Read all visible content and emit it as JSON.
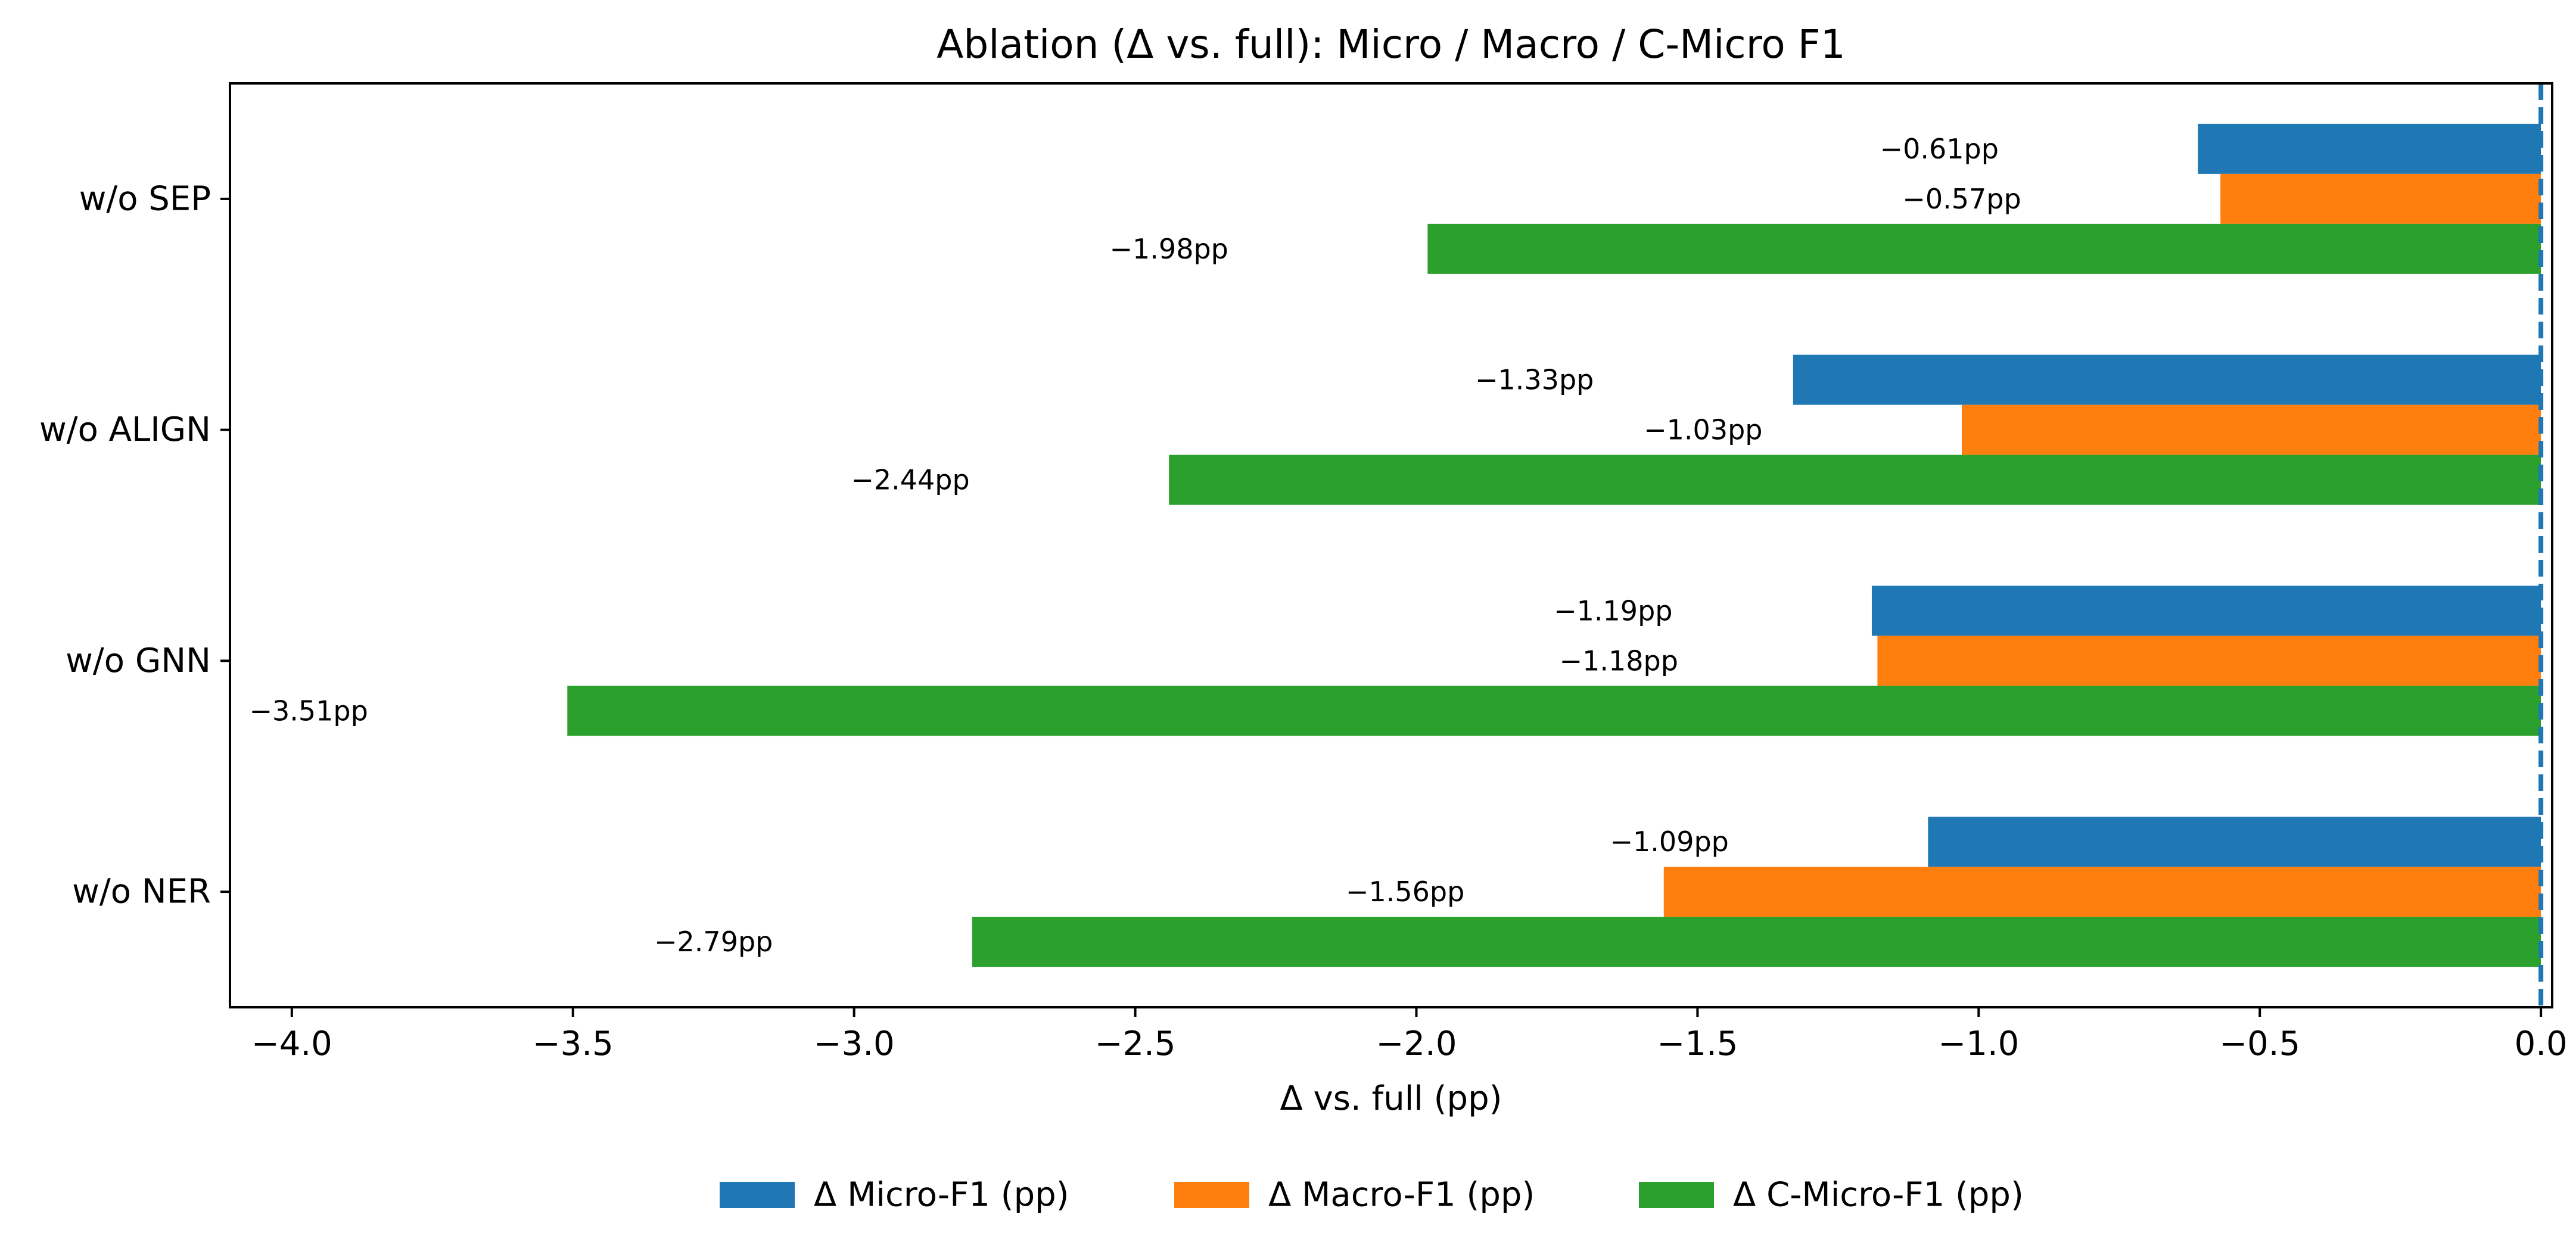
{
  "chart_data": {
    "type": "bar",
    "orientation": "horizontal",
    "title": "Ablation (Δ vs. full): Micro / Macro / C-Micro F1",
    "xlabel": "Δ vs. full (pp)",
    "ylabel": "",
    "xlim": [
      -4.11,
      0.02
    ],
    "xticks": [
      -4.0,
      -3.5,
      -3.0,
      -2.5,
      -2.0,
      -1.5,
      -1.0,
      -0.5,
      0.0
    ],
    "xtick_labels": [
      "−4.0",
      "−3.5",
      "−3.0",
      "−2.5",
      "−2.0",
      "−1.5",
      "−1.0",
      "−0.5",
      "0.0"
    ],
    "categories": [
      "w/o SEP",
      "w/o ALIGN",
      "w/o GNN",
      "w/o NER"
    ],
    "series": [
      {
        "name": "Δ Micro-F1 (pp)",
        "color": "#1f77b4",
        "values": [
          -0.61,
          -1.33,
          -1.19,
          -1.09
        ],
        "labels": [
          "−0.61pp",
          "−1.33pp",
          "−1.19pp",
          "−1.09pp"
        ]
      },
      {
        "name": "Δ Macro-F1 (pp)",
        "color": "#ff7f0e",
        "values": [
          -0.57,
          -1.03,
          -1.18,
          -1.56
        ],
        "labels": [
          "−0.57pp",
          "−1.03pp",
          "−1.18pp",
          "−1.56pp"
        ]
      },
      {
        "name": "Δ C-Micro-F1 (pp)",
        "color": "#2ca02c",
        "values": [
          -1.98,
          -2.44,
          -3.51,
          -2.79
        ],
        "labels": [
          "−1.98pp",
          "−2.44pp",
          "−3.51pp",
          "−2.79pp"
        ]
      }
    ],
    "reference_line": {
      "x": 0.0,
      "style": "dashed",
      "color": "#1f77b4"
    },
    "legend": {
      "position": "bottom-center",
      "columns": 3
    },
    "grid": false
  }
}
